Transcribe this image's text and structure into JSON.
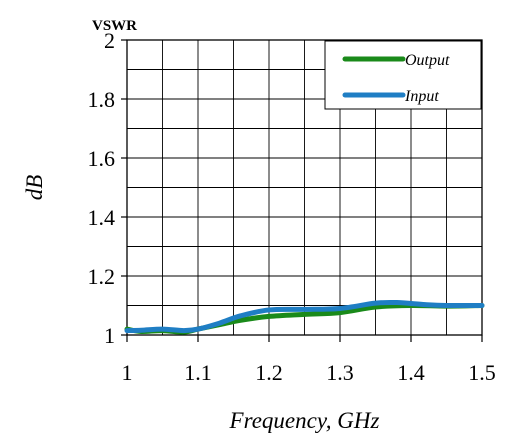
{
  "chart_data": {
    "type": "line",
    "title": "VSWR",
    "xlabel": "Frequency, GHz",
    "ylabel": "dB",
    "xlim": [
      1,
      1.5
    ],
    "ylim": [
      1,
      2
    ],
    "xticks": [
      1,
      1.1,
      1.2,
      1.3,
      1.4,
      1.5
    ],
    "yticks": [
      1,
      1.2,
      1.4,
      1.6,
      1.8,
      2
    ],
    "xtick_labels": [
      "1",
      "1.1",
      "1.2",
      "1.3",
      "1.4",
      "1.5"
    ],
    "ytick_labels": [
      "1",
      "1.2",
      "1.4",
      "1.6",
      "1.8",
      "2"
    ],
    "grid": true,
    "legend_position": "top-right",
    "series": [
      {
        "name": "Output",
        "color": "#1a8a1a",
        "x": [
          1.0,
          1.02,
          1.05,
          1.08,
          1.1,
          1.13,
          1.16,
          1.2,
          1.25,
          1.3,
          1.35,
          1.4,
          1.45,
          1.5
        ],
        "y": [
          1.02,
          1.012,
          1.015,
          1.01,
          1.02,
          1.035,
          1.05,
          1.063,
          1.07,
          1.076,
          1.095,
          1.1,
          1.098,
          1.1
        ]
      },
      {
        "name": "Input",
        "color": "#1f7ec4",
        "x": [
          1.0,
          1.02,
          1.05,
          1.08,
          1.1,
          1.13,
          1.16,
          1.2,
          1.25,
          1.3,
          1.35,
          1.38,
          1.42,
          1.45,
          1.5
        ],
        "y": [
          1.015,
          1.016,
          1.02,
          1.015,
          1.02,
          1.04,
          1.065,
          1.085,
          1.087,
          1.09,
          1.108,
          1.11,
          1.103,
          1.1,
          1.1
        ]
      }
    ]
  }
}
